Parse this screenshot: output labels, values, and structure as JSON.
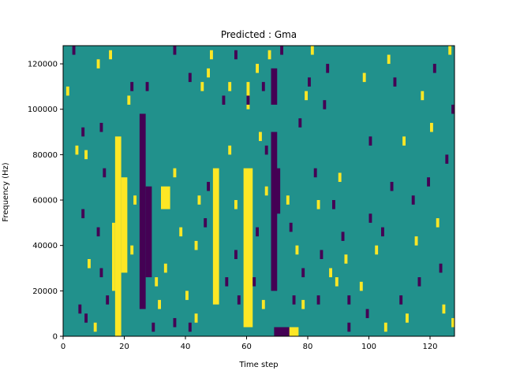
{
  "chart_data": {
    "type": "heatmap",
    "title": "Predicted : Gma",
    "xlabel": "Time step",
    "ylabel": "Frequency (Hz)",
    "xlim": [
      0,
      128
    ],
    "ylim": [
      0,
      128000
    ],
    "x_ticks": [
      0,
      20,
      40,
      60,
      80,
      100,
      120
    ],
    "y_ticks": [
      0,
      20000,
      40000,
      60000,
      80000,
      100000,
      120000
    ],
    "x_tick_labels": [
      "0",
      "20",
      "40",
      "60",
      "80",
      "100",
      "120"
    ],
    "y_tick_labels": [
      "0",
      "20000",
      "40000",
      "60000",
      "80000",
      "100000",
      "120000"
    ],
    "grid": false,
    "colormap": {
      "background": "#21918c",
      "low": "#440154",
      "high": "#fde725"
    },
    "bands": [
      {
        "type": "high",
        "x": [
          17,
          19
        ],
        "y": [
          0,
          88000
        ]
      },
      {
        "type": "high",
        "x": [
          19,
          21
        ],
        "y": [
          28000,
          70000
        ]
      },
      {
        "type": "high",
        "x": [
          16,
          17
        ],
        "y": [
          20000,
          50000
        ]
      },
      {
        "type": "low",
        "x": [
          25,
          27
        ],
        "y": [
          12000,
          98000
        ]
      },
      {
        "type": "low",
        "x": [
          27,
          29
        ],
        "y": [
          26000,
          66000
        ]
      },
      {
        "type": "high",
        "x": [
          32,
          35
        ],
        "y": [
          56000,
          66000
        ]
      },
      {
        "type": "high",
        "x": [
          49,
          51
        ],
        "y": [
          14000,
          74000
        ]
      },
      {
        "type": "high",
        "x": [
          59,
          62
        ],
        "y": [
          4000,
          74000
        ]
      },
      {
        "type": "high",
        "x": [
          60,
          61
        ],
        "y": [
          100000,
          112000
        ]
      },
      {
        "type": "low",
        "x": [
          68,
          70
        ],
        "y": [
          20000,
          90000
        ]
      },
      {
        "type": "low",
        "x": [
          69,
          71
        ],
        "y": [
          54000,
          74000
        ]
      },
      {
        "type": "low",
        "x": [
          68,
          70
        ],
        "y": [
          102000,
          118000
        ]
      },
      {
        "type": "low",
        "x": [
          69,
          74
        ],
        "y": [
          0,
          4000
        ]
      },
      {
        "type": "high",
        "x": [
          74,
          77
        ],
        "y": [
          0,
          4000
        ]
      }
    ],
    "cells": [
      {
        "type": "low",
        "x": 3,
        "y": 124000
      },
      {
        "type": "high",
        "x": 1,
        "y": 106000
      },
      {
        "type": "high",
        "x": 4,
        "y": 80000
      },
      {
        "type": "low",
        "x": 6,
        "y": 88000
      },
      {
        "type": "high",
        "x": 7,
        "y": 78000
      },
      {
        "type": "low",
        "x": 6,
        "y": 52000
      },
      {
        "type": "high",
        "x": 8,
        "y": 30000
      },
      {
        "type": "low",
        "x": 5,
        "y": 10000
      },
      {
        "type": "low",
        "x": 7,
        "y": 6000
      },
      {
        "type": "high",
        "x": 10,
        "y": 2000
      },
      {
        "type": "high",
        "x": 11,
        "y": 118000
      },
      {
        "type": "low",
        "x": 12,
        "y": 90000
      },
      {
        "type": "low",
        "x": 13,
        "y": 70000
      },
      {
        "type": "low",
        "x": 11,
        "y": 44000
      },
      {
        "type": "low",
        "x": 12,
        "y": 26000
      },
      {
        "type": "low",
        "x": 14,
        "y": 14000
      },
      {
        "type": "high",
        "x": 22,
        "y": 36000
      },
      {
        "type": "high",
        "x": 23,
        "y": 58000
      },
      {
        "type": "low",
        "x": 22,
        "y": 108000
      },
      {
        "type": "high",
        "x": 21,
        "y": 102000
      },
      {
        "type": "high",
        "x": 15,
        "y": 122000
      },
      {
        "type": "low",
        "x": 27,
        "y": 108000
      },
      {
        "type": "low",
        "x": 29,
        "y": 2000
      },
      {
        "type": "high",
        "x": 30,
        "y": 22000
      },
      {
        "type": "high",
        "x": 31,
        "y": 12000
      },
      {
        "type": "high",
        "x": 33,
        "y": 28000
      },
      {
        "type": "high",
        "x": 36,
        "y": 70000
      },
      {
        "type": "high",
        "x": 38,
        "y": 44000
      },
      {
        "type": "high",
        "x": 40,
        "y": 16000
      },
      {
        "type": "low",
        "x": 36,
        "y": 4000
      },
      {
        "type": "low",
        "x": 41,
        "y": 2000
      },
      {
        "type": "high",
        "x": 43,
        "y": 6000
      },
      {
        "type": "high",
        "x": 43,
        "y": 38000
      },
      {
        "type": "high",
        "x": 44,
        "y": 58000
      },
      {
        "type": "low",
        "x": 46,
        "y": 48000
      },
      {
        "type": "low",
        "x": 47,
        "y": 64000
      },
      {
        "type": "high",
        "x": 45,
        "y": 108000
      },
      {
        "type": "low",
        "x": 36,
        "y": 124000
      },
      {
        "type": "low",
        "x": 41,
        "y": 112000
      },
      {
        "type": "high",
        "x": 47,
        "y": 114000
      },
      {
        "type": "high",
        "x": 48,
        "y": 122000
      },
      {
        "type": "low",
        "x": 53,
        "y": 22000
      },
      {
        "type": "low",
        "x": 56,
        "y": 34000
      },
      {
        "type": "low",
        "x": 57,
        "y": 14000
      },
      {
        "type": "high",
        "x": 56,
        "y": 56000
      },
      {
        "type": "high",
        "x": 54,
        "y": 80000
      },
      {
        "type": "low",
        "x": 52,
        "y": 102000
      },
      {
        "type": "high",
        "x": 54,
        "y": 108000
      },
      {
        "type": "low",
        "x": 56,
        "y": 122000
      },
      {
        "type": "low",
        "x": 60,
        "y": 102000
      },
      {
        "type": "high",
        "x": 63,
        "y": 116000
      },
      {
        "type": "low",
        "x": 65,
        "y": 108000
      },
      {
        "type": "high",
        "x": 64,
        "y": 86000
      },
      {
        "type": "low",
        "x": 66,
        "y": 80000
      },
      {
        "type": "high",
        "x": 66,
        "y": 62000
      },
      {
        "type": "low",
        "x": 63,
        "y": 44000
      },
      {
        "type": "low",
        "x": 62,
        "y": 22000
      },
      {
        "type": "high",
        "x": 65,
        "y": 12000
      },
      {
        "type": "high",
        "x": 67,
        "y": 122000
      },
      {
        "type": "low",
        "x": 71,
        "y": 124000
      },
      {
        "type": "high",
        "x": 73,
        "y": 58000
      },
      {
        "type": "low",
        "x": 74,
        "y": 46000
      },
      {
        "type": "high",
        "x": 76,
        "y": 36000
      },
      {
        "type": "low",
        "x": 78,
        "y": 26000
      },
      {
        "type": "low",
        "x": 75,
        "y": 14000
      },
      {
        "type": "high",
        "x": 78,
        "y": 12000
      },
      {
        "type": "low",
        "x": 77,
        "y": 92000
      },
      {
        "type": "high",
        "x": 79,
        "y": 104000
      },
      {
        "type": "low",
        "x": 80,
        "y": 110000
      },
      {
        "type": "high",
        "x": 81,
        "y": 124000
      },
      {
        "type": "low",
        "x": 82,
        "y": 70000
      },
      {
        "type": "high",
        "x": 83,
        "y": 56000
      },
      {
        "type": "low",
        "x": 84,
        "y": 34000
      },
      {
        "type": "low",
        "x": 83,
        "y": 14000
      },
      {
        "type": "low",
        "x": 85,
        "y": 100000
      },
      {
        "type": "low",
        "x": 86,
        "y": 116000
      },
      {
        "type": "high",
        "x": 87,
        "y": 26000
      },
      {
        "type": "high",
        "x": 89,
        "y": 22000
      },
      {
        "type": "low",
        "x": 88,
        "y": 56000
      },
      {
        "type": "high",
        "x": 90,
        "y": 68000
      },
      {
        "type": "low",
        "x": 91,
        "y": 42000
      },
      {
        "type": "high",
        "x": 92,
        "y": 32000
      },
      {
        "type": "low",
        "x": 93,
        "y": 14000
      },
      {
        "type": "low",
        "x": 93,
        "y": 2000
      },
      {
        "type": "high",
        "x": 97,
        "y": 20000
      },
      {
        "type": "low",
        "x": 99,
        "y": 8000
      },
      {
        "type": "high",
        "x": 98,
        "y": 112000
      },
      {
        "type": "low",
        "x": 100,
        "y": 84000
      },
      {
        "type": "low",
        "x": 100,
        "y": 50000
      },
      {
        "type": "high",
        "x": 102,
        "y": 36000
      },
      {
        "type": "high",
        "x": 105,
        "y": 2000
      },
      {
        "type": "low",
        "x": 104,
        "y": 44000
      },
      {
        "type": "low",
        "x": 107,
        "y": 64000
      },
      {
        "type": "high",
        "x": 106,
        "y": 120000
      },
      {
        "type": "low",
        "x": 108,
        "y": 110000
      },
      {
        "type": "high",
        "x": 111,
        "y": 84000
      },
      {
        "type": "low",
        "x": 110,
        "y": 14000
      },
      {
        "type": "high",
        "x": 112,
        "y": 6000
      },
      {
        "type": "low",
        "x": 114,
        "y": 58000
      },
      {
        "type": "high",
        "x": 115,
        "y": 40000
      },
      {
        "type": "low",
        "x": 116,
        "y": 22000
      },
      {
        "type": "high",
        "x": 117,
        "y": 104000
      },
      {
        "type": "low",
        "x": 119,
        "y": 66000
      },
      {
        "type": "high",
        "x": 120,
        "y": 90000
      },
      {
        "type": "low",
        "x": 121,
        "y": 116000
      },
      {
        "type": "high",
        "x": 122,
        "y": 48000
      },
      {
        "type": "low",
        "x": 123,
        "y": 28000
      },
      {
        "type": "high",
        "x": 124,
        "y": 10000
      },
      {
        "type": "low",
        "x": 125,
        "y": 76000
      },
      {
        "type": "high",
        "x": 126,
        "y": 124000
      },
      {
        "type": "low",
        "x": 127,
        "y": 98000
      },
      {
        "type": "high",
        "x": 127,
        "y": 4000
      }
    ]
  }
}
